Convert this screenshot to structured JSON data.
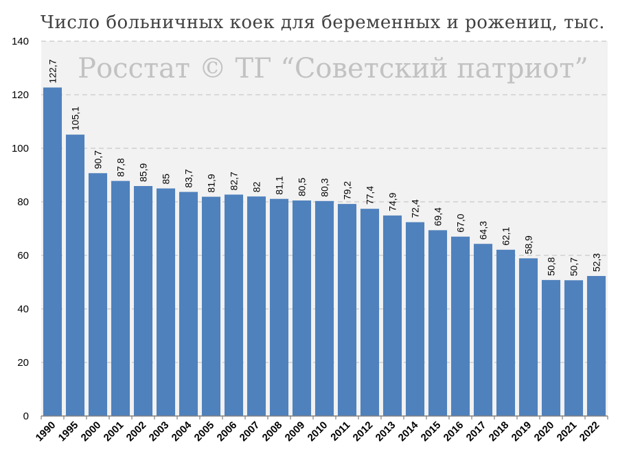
{
  "chart_data": {
    "type": "bar",
    "title": "Число больничных коек для беременных и рожениц, тыс.",
    "watermark": "Росстат © ТГ “Советский патриот”",
    "xlabel": "",
    "ylabel": "",
    "ylim": [
      0,
      140
    ],
    "yticks": [
      0,
      20,
      40,
      60,
      80,
      100,
      120,
      140
    ],
    "grid": true,
    "categories": [
      "1990",
      "1995",
      "2000",
      "2001",
      "2002",
      "2003",
      "2004",
      "2005",
      "2006",
      "2007",
      "2008",
      "2009",
      "2010",
      "2011",
      "2012",
      "2013",
      "2014",
      "2015",
      "2016",
      "2017",
      "2018",
      "2019",
      "2020",
      "2021",
      "2022"
    ],
    "values": [
      122.7,
      105.1,
      90.7,
      87.8,
      85.9,
      85,
      83.7,
      81.9,
      82.7,
      82,
      81.1,
      80.5,
      80.3,
      79.2,
      77.4,
      74.9,
      72.4,
      69.4,
      67.0,
      64.3,
      62.1,
      58.9,
      50.8,
      50.7,
      52.3
    ],
    "data_labels": [
      "122,7",
      "105,1",
      "90,7",
      "87,8",
      "85,9",
      "85",
      "83,7",
      "81,9",
      "82,7",
      "82",
      "81,1",
      "80,5",
      "80,3",
      "79,2",
      "77,4",
      "74,9",
      "72,4",
      "69,4",
      "67,0",
      "64,3",
      "62,1",
      "58,9",
      "50,8",
      "50,7",
      "52,3"
    ],
    "colors": {
      "bar": "#4f81bd",
      "plot_background": "#f2f2f2",
      "grid": "#c8c8c8"
    }
  }
}
